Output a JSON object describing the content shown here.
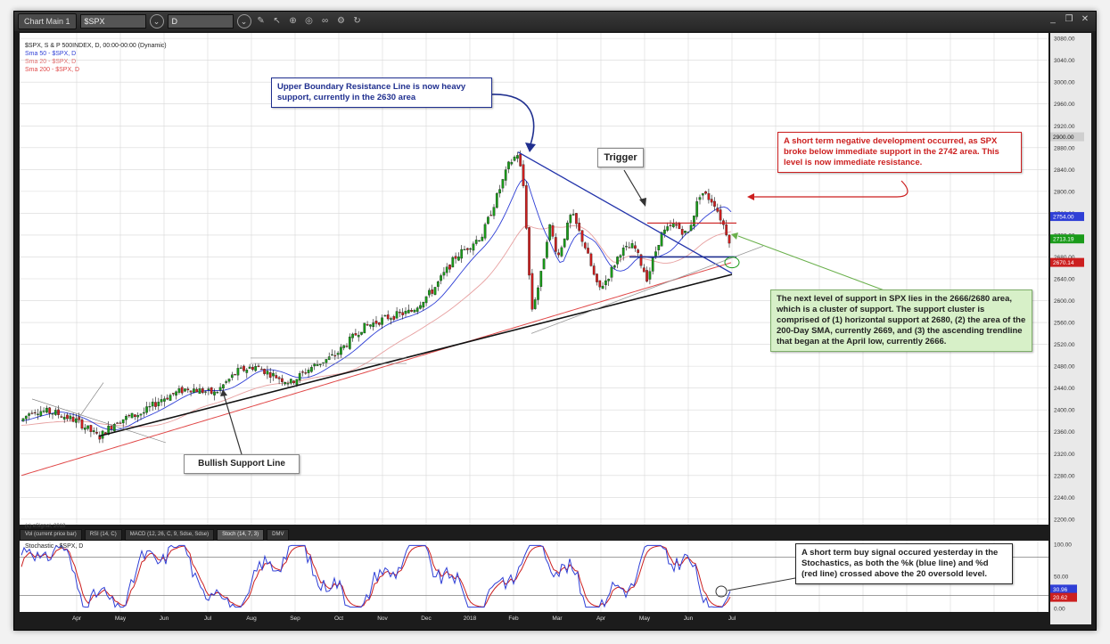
{
  "window": {
    "tab_label": "Chart Main 1",
    "symbol": "$SPX",
    "period": "D"
  },
  "legend": {
    "main": "$SPX, S & P 500INDEX, D, 00:00-00:00 (Dynamic)",
    "sma50": "Sma 50 - $SPX, D",
    "sma20": "Sma 20 - $SPX, D",
    "sma200": "Sma 200 - $SPX, D"
  },
  "copyright": "(c) eSignal, 2018",
  "panel_tabs": [
    "Vol (current price bar)",
    "RSI (14, C)",
    "MACD (12, 26, C, 9, Sdse, Sdse)",
    "Stoch (14, 7, 3)",
    "DMV"
  ],
  "stoch_label": "Stochastic - $SPX, D",
  "annotations": {
    "upper_boundary": "Upper Boundary Resistance Line is now heavy support, currently in the 2630 area",
    "trigger": "Trigger",
    "negative_dev": "A short term negative development occurred, as SPX broke below immediate support in the 2742 area. This level is now immediate resistance.",
    "next_support": "The next level of support in SPX lies in the 2666/2680 area, which is a cluster of support. The support cluster is comprised of (1) horizontal support at 2680, (2) the area of the 200-Day SMA, currently 2669, and (3) the ascending trendline that began at the April low, currently 2666.",
    "bullish_support": "Bullish Support Line",
    "buy_signal": "A short term buy signal occured yesterday in the Stochastics, as both the %k (blue line) and %d (red line) crossed above the 20 oversold level."
  },
  "colors": {
    "chart_bg": "#ffffff",
    "up_candle": "#1a9b1a",
    "down_candle": "#cc1f1f",
    "sma20": "#2f3fd6",
    "sma50": "#7f7f7f",
    "sma200": "#e04848",
    "blue_note": "#1f2f8f",
    "red_note": "#cc1f1f"
  },
  "chart_data": {
    "type": "candlestick",
    "y_ticks": [
      "3080.00",
      "3040.00",
      "3000.00",
      "2960.00",
      "2920.00",
      "2880.00",
      "2840.00",
      "2800.00",
      "2760.00",
      "2720.00",
      "2680.00",
      "2640.00",
      "2600.00",
      "2560.00",
      "2520.00",
      "2480.00",
      "2440.00",
      "2400.00",
      "2360.00",
      "2320.00",
      "2280.00",
      "2240.00",
      "2200.00"
    ],
    "ylim": [
      2190,
      3090
    ],
    "x_labels": [
      "Apr",
      "May",
      "Jun",
      "Jul",
      "Aug",
      "Sep",
      "Oct",
      "Nov",
      "Dec",
      "2018",
      "Feb",
      "Mar",
      "Apr",
      "May",
      "Jun",
      "Jul"
    ],
    "price_tags": [
      {
        "label": "2900.00",
        "value": 2900,
        "color": "#cfcfcf"
      },
      {
        "label": "2754.00",
        "value": 2754,
        "color": "#2f3fd6"
      },
      {
        "label": "2713.19",
        "value": 2713,
        "color": "#1a9b1a"
      },
      {
        "label": "2670.14",
        "value": 2670,
        "color": "#cc1f1f"
      }
    ],
    "stoch_ticks": [
      "100.00",
      "50.00",
      "20.02",
      "0.00"
    ],
    "stoch_tags": [
      {
        "label": "30.96",
        "color": "#2f3fd6"
      },
      {
        "label": "20.62",
        "color": "#cc1f1f"
      }
    ]
  }
}
